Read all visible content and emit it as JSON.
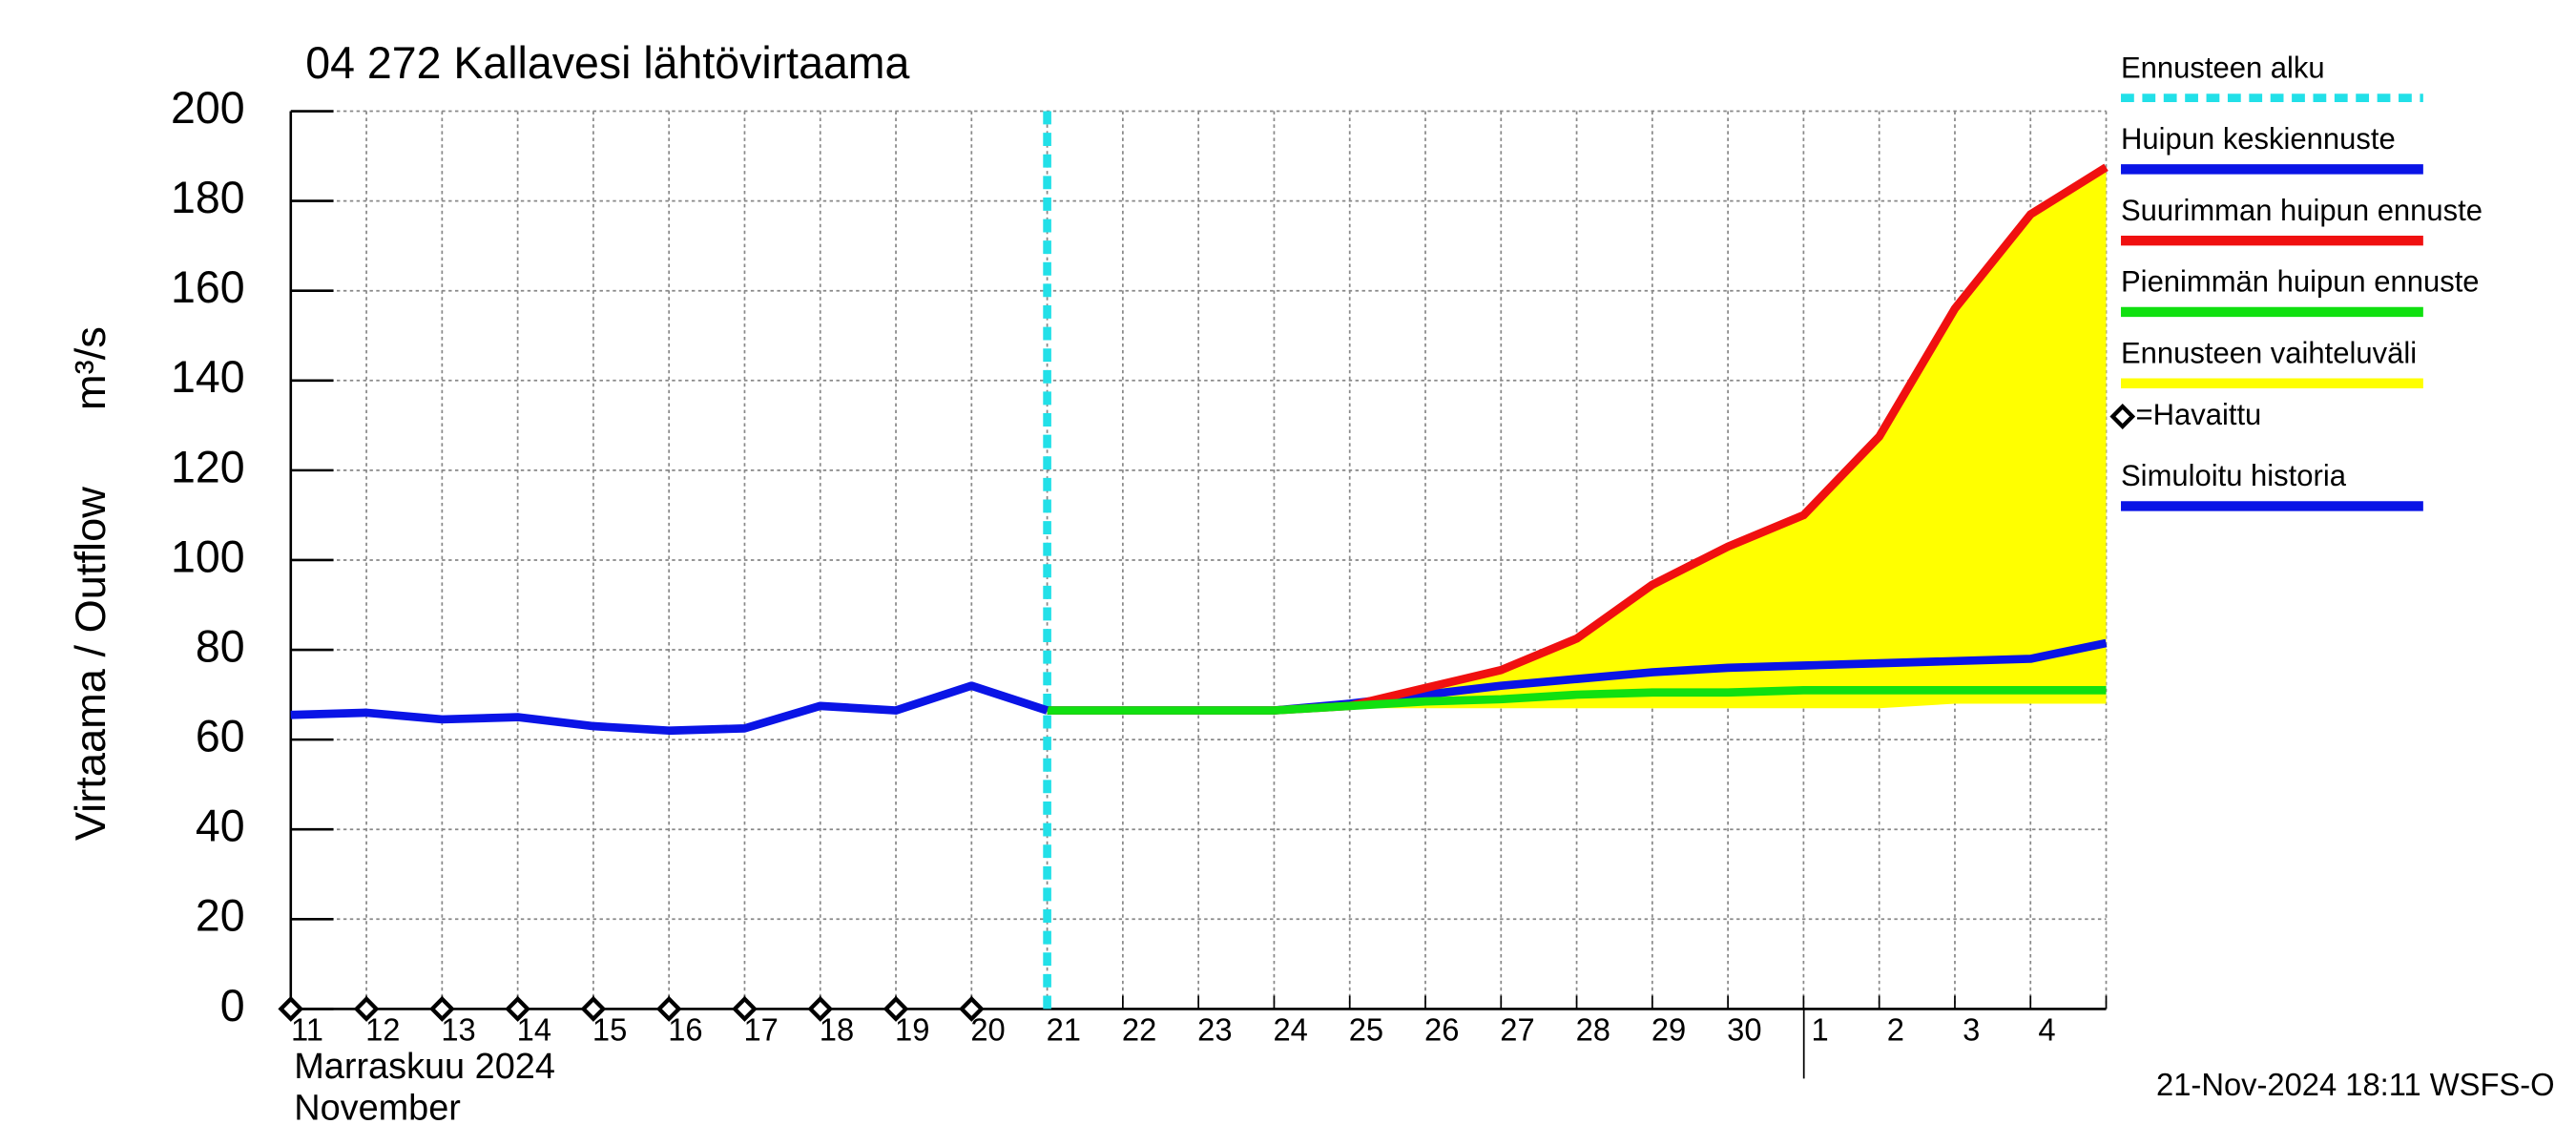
{
  "chart_data": {
    "type": "line",
    "title": "04 272 Kallavesi lähtövirtaama",
    "y_label": "Virtaama / Outflow",
    "y_unit": "m³/s",
    "x_label": "Marraskuu 2024",
    "x_label_2": "November",
    "footer": "21-Nov-2024 18:11 WSFS-O",
    "categories": [
      "11",
      "12",
      "13",
      "14",
      "15",
      "16",
      "17",
      "18",
      "19",
      "20",
      "21",
      "22",
      "23",
      "24",
      "25",
      "26",
      "27",
      "28",
      "29",
      "30",
      "1",
      "2",
      "3",
      "4",
      null
    ],
    "ylim": [
      0,
      200
    ],
    "yticks": [
      0,
      20,
      40,
      60,
      80,
      100,
      120,
      140,
      160,
      180,
      200
    ],
    "grid": true,
    "forecast_start": {
      "label": "Ennusteen alku",
      "index": 10,
      "color": "#22e0e8"
    },
    "series": [
      {
        "name": "Huipun keskiennuste",
        "color": "#0a14e6",
        "kind": "line",
        "values": [
          null,
          null,
          null,
          null,
          null,
          null,
          null,
          null,
          null,
          null,
          66.5,
          66.5,
          66.5,
          66.5,
          68,
          70,
          72,
          73.5,
          75,
          76,
          76.5,
          77,
          77.5,
          78,
          81.5
        ]
      },
      {
        "name": "Suurimman huipun ennuste",
        "color": "#f01010",
        "kind": "line",
        "values": [
          null,
          null,
          null,
          null,
          null,
          null,
          null,
          null,
          null,
          null,
          66.5,
          66.5,
          66.5,
          66.5,
          67.5,
          71.5,
          75.5,
          82.5,
          94.5,
          103,
          110,
          127.5,
          156,
          177,
          187.5
        ]
      },
      {
        "name": "Pienimmän huipun ennuste",
        "color": "#10e010",
        "kind": "line",
        "values": [
          null,
          null,
          null,
          null,
          null,
          null,
          null,
          null,
          null,
          null,
          66.5,
          66.5,
          66.5,
          66.5,
          67.5,
          68.5,
          69,
          70,
          70.5,
          70.5,
          71,
          71,
          71,
          71,
          71
        ]
      },
      {
        "name": "Ennusteen vaihteluväli",
        "color": "#ffff00",
        "kind": "range",
        "low": [
          null,
          null,
          null,
          null,
          null,
          null,
          null,
          null,
          null,
          null,
          66.5,
          66.5,
          66.5,
          66.5,
          67,
          67,
          67,
          67,
          67,
          67,
          67,
          67,
          68,
          68,
          68
        ],
        "values": [
          null,
          null,
          null,
          null,
          null,
          null,
          null,
          null,
          null,
          null,
          66.5,
          66.5,
          66.5,
          66.5,
          67.5,
          71.5,
          75.5,
          82.5,
          94.5,
          103,
          110,
          127.5,
          156,
          177,
          187.5
        ]
      },
      {
        "name": "=Havaittu",
        "color": "#000000",
        "kind": "marker",
        "values": [
          0,
          0,
          0,
          0,
          0,
          0,
          0,
          0,
          0,
          0,
          null,
          null,
          null,
          null,
          null,
          null,
          null,
          null,
          null,
          null,
          null,
          null,
          null,
          null,
          null
        ]
      },
      {
        "name": "Simuloitu historia",
        "color": "#0a14e6",
        "kind": "line",
        "values": [
          65.5,
          66,
          64.5,
          65,
          63,
          62,
          62.5,
          67.5,
          66.5,
          72,
          66.5,
          null,
          null,
          null,
          null,
          null,
          null,
          null,
          null,
          null,
          null,
          null,
          null,
          null,
          null
        ]
      }
    ]
  }
}
